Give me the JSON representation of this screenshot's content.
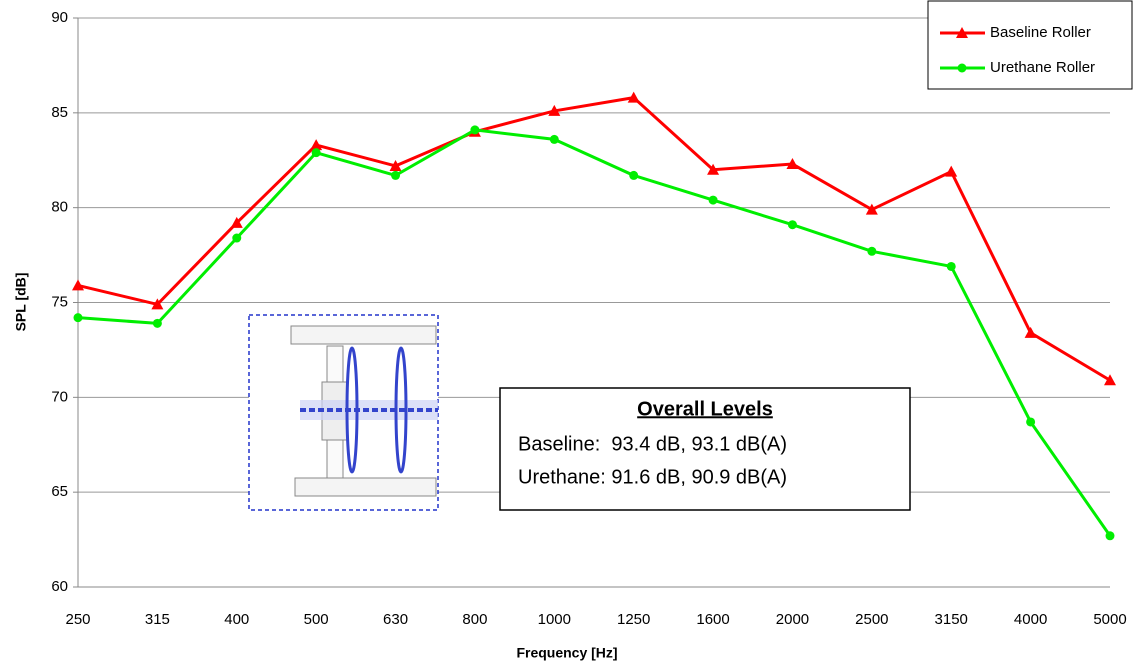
{
  "chart_data": {
    "type": "line",
    "x_label": "Frequency [Hz]",
    "y_label": "SPL [dB]",
    "categories": [
      "250",
      "315",
      "400",
      "500",
      "630",
      "800",
      "1000",
      "1250",
      "1600",
      "2000",
      "2500",
      "3150",
      "4000",
      "5000"
    ],
    "series": [
      {
        "name": "Baseline Roller",
        "color": "#ff0000",
        "marker": "triangle",
        "values": [
          75.9,
          74.9,
          79.2,
          83.3,
          82.2,
          84.0,
          85.1,
          85.8,
          82.0,
          82.3,
          79.9,
          81.9,
          73.4,
          70.9
        ]
      },
      {
        "name": "Urethane Roller",
        "color": "#00ee00",
        "marker": "circle",
        "values": [
          74.2,
          73.9,
          78.4,
          82.9,
          81.7,
          84.1,
          83.6,
          81.7,
          80.4,
          79.1,
          77.7,
          76.9,
          68.7,
          62.7
        ]
      }
    ],
    "ylim": [
      60,
      90
    ],
    "yticks": [
      60,
      65,
      70,
      75,
      80,
      85,
      90
    ],
    "grid": true,
    "legend": "upper right",
    "annotation": {
      "title": "Overall Levels",
      "lines": [
        "Baseline:  93.4 dB, 93.1 dB(A)",
        "Urethane: 91.6 dB, 90.9 dB(A)"
      ]
    }
  }
}
